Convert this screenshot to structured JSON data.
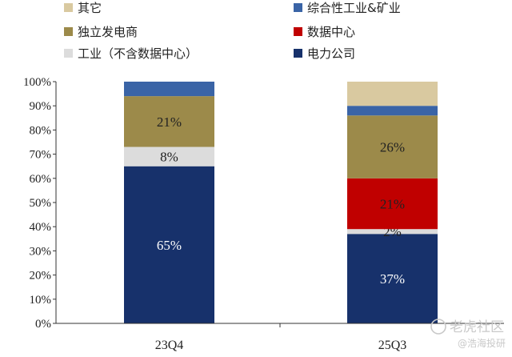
{
  "chart_data": {
    "type": "bar",
    "stacked": true,
    "categories": [
      "23Q4",
      "25Q3"
    ],
    "ylim": [
      0,
      100
    ],
    "yticks": [
      "0%",
      "10%",
      "20%",
      "30%",
      "40%",
      "50%",
      "60%",
      "70%",
      "80%",
      "90%",
      "100%"
    ],
    "series": [
      {
        "name": "电力公司",
        "color": "#17316b",
        "values": [
          65,
          37
        ],
        "labels": [
          "65%",
          "37%"
        ],
        "label_color": "#ffffff"
      },
      {
        "name": "工业（不含数据中心）",
        "color": "#dcdcdc",
        "values": [
          8,
          2
        ],
        "labels": [
          "8%",
          "2%"
        ],
        "label_color": "#222222"
      },
      {
        "name": "数据中心",
        "color": "#c00000",
        "values": [
          0,
          21
        ],
        "labels": [
          "",
          "21%"
        ],
        "label_color": "#222222"
      },
      {
        "name": "独立发电商",
        "color": "#9c8a4a",
        "values": [
          21,
          26
        ],
        "labels": [
          "21%",
          "26%"
        ],
        "label_color": "#222222"
      },
      {
        "name": "综合性工业&矿业",
        "color": "#3a64a6",
        "values": [
          6,
          4
        ],
        "labels": [
          "",
          ""
        ],
        "label_color": "#222222"
      },
      {
        "name": "其它",
        "color": "#d9c9a0",
        "values": [
          0,
          10
        ],
        "labels": [
          "",
          ""
        ],
        "label_color": "#222222"
      }
    ],
    "legend": [
      {
        "name": "其它",
        "color": "#d9c9a0"
      },
      {
        "name": "综合性工业&矿业",
        "color": "#3a64a6"
      },
      {
        "name": "独立发电商",
        "color": "#9c8a4a"
      },
      {
        "name": "数据中心",
        "color": "#c00000"
      },
      {
        "name": "工业（不含数据中心）",
        "color": "#dcdcdc"
      },
      {
        "name": "电力公司",
        "color": "#17316b"
      }
    ],
    "legend_position": "top",
    "grid": false
  },
  "watermark": {
    "text1": "老虎社区",
    "text2": "@浩海投研"
  }
}
